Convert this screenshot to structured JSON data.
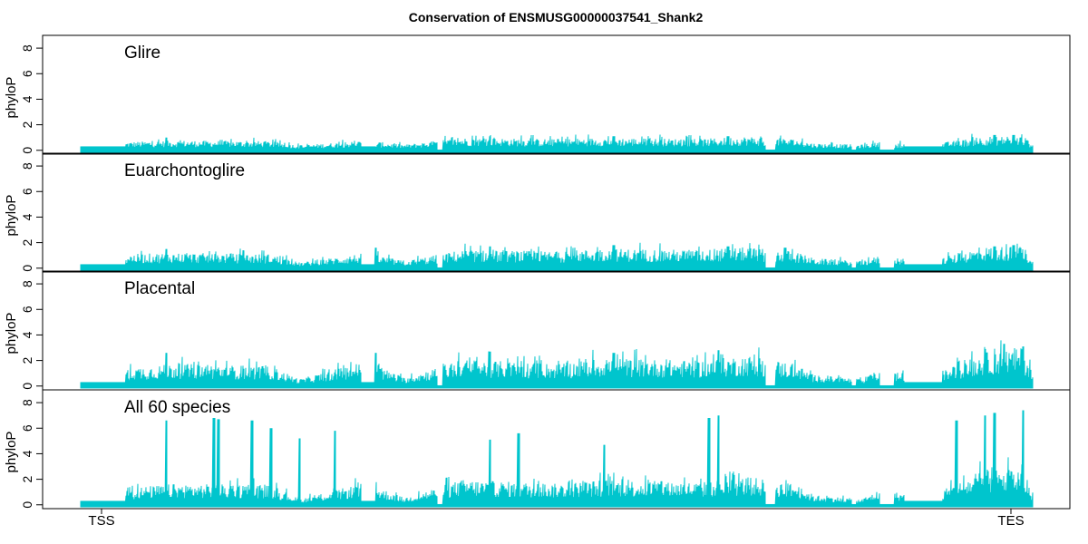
{
  "chart_data": {
    "type": "area",
    "title": "Conservation of ENSMUSG00000037541_Shank2",
    "ylabel": "phyloP",
    "ylim": [
      -0.3,
      9.0
    ],
    "yticks": [
      0,
      2,
      4,
      6,
      8
    ],
    "x_ticks": [
      "TSS",
      "TES"
    ],
    "fill_color": "#00C5CD",
    "panels": [
      {
        "name": "Glire",
        "envelope": [
          [
            0.0,
            0.4
          ],
          [
            0.04,
            0.4
          ],
          [
            0.05,
            0.6
          ],
          [
            0.1,
            0.7
          ],
          [
            0.2,
            0.65
          ],
          [
            0.23,
            0.35
          ],
          [
            0.3,
            0.7
          ],
          [
            0.34,
            0.4
          ],
          [
            0.4,
            0.9
          ],
          [
            0.5,
            0.8
          ],
          [
            0.55,
            0.9
          ],
          [
            0.65,
            0.8
          ],
          [
            0.7,
            1.0
          ],
          [
            0.75,
            0.8
          ],
          [
            0.77,
            0.5
          ],
          [
            0.82,
            0.4
          ],
          [
            0.84,
            0.6
          ],
          [
            0.89,
            0.4
          ],
          [
            0.95,
            1.0
          ],
          [
            0.99,
            1.0
          ],
          [
            1.0,
            0.5
          ]
        ],
        "peaks": [
          [
            0.09,
            1.0
          ],
          [
            0.43,
            1.1
          ],
          [
            0.56,
            1.1
          ],
          [
            0.68,
            1.1
          ],
          [
            0.96,
            1.2
          ],
          [
            0.98,
            1.2
          ]
        ]
      },
      {
        "name": "Euarchontoglire",
        "envelope": [
          [
            0.0,
            0.4
          ],
          [
            0.04,
            0.4
          ],
          [
            0.05,
            1.0
          ],
          [
            0.1,
            1.1
          ],
          [
            0.2,
            1.0
          ],
          [
            0.23,
            0.4
          ],
          [
            0.3,
            1.1
          ],
          [
            0.34,
            0.5
          ],
          [
            0.4,
            1.3
          ],
          [
            0.5,
            1.2
          ],
          [
            0.55,
            1.4
          ],
          [
            0.65,
            1.3
          ],
          [
            0.7,
            1.5
          ],
          [
            0.75,
            1.2
          ],
          [
            0.77,
            0.7
          ],
          [
            0.82,
            0.5
          ],
          [
            0.84,
            0.9
          ],
          [
            0.89,
            0.5
          ],
          [
            0.95,
            1.5
          ],
          [
            0.99,
            1.6
          ],
          [
            1.0,
            0.6
          ]
        ],
        "peaks": [
          [
            0.09,
            1.5
          ],
          [
            0.31,
            1.6
          ],
          [
            0.43,
            1.7
          ],
          [
            0.56,
            1.8
          ],
          [
            0.68,
            1.7
          ],
          [
            0.74,
            1.6
          ],
          [
            0.96,
            1.7
          ],
          [
            0.98,
            1.8
          ]
        ]
      },
      {
        "name": "Placental",
        "envelope": [
          [
            0.0,
            0.4
          ],
          [
            0.04,
            0.4
          ],
          [
            0.05,
            1.3
          ],
          [
            0.1,
            1.6
          ],
          [
            0.2,
            1.4
          ],
          [
            0.23,
            0.5
          ],
          [
            0.3,
            1.8
          ],
          [
            0.34,
            0.6
          ],
          [
            0.4,
            1.9
          ],
          [
            0.5,
            1.6
          ],
          [
            0.55,
            2.0
          ],
          [
            0.65,
            1.8
          ],
          [
            0.7,
            2.2
          ],
          [
            0.75,
            1.6
          ],
          [
            0.77,
            0.8
          ],
          [
            0.82,
            0.5
          ],
          [
            0.84,
            1.2
          ],
          [
            0.89,
            0.6
          ],
          [
            0.95,
            2.4
          ],
          [
            0.99,
            2.8
          ],
          [
            1.0,
            0.9
          ]
        ],
        "peaks": [
          [
            0.09,
            2.6
          ],
          [
            0.31,
            2.6
          ],
          [
            0.43,
            2.7
          ],
          [
            0.56,
            2.6
          ],
          [
            0.67,
            2.8
          ],
          [
            0.95,
            2.9
          ],
          [
            0.97,
            3.3
          ],
          [
            0.99,
            3.1
          ]
        ]
      },
      {
        "name": "All 60 species",
        "envelope": [
          [
            0.0,
            0.4
          ],
          [
            0.04,
            0.4
          ],
          [
            0.05,
            1.2
          ],
          [
            0.1,
            1.5
          ],
          [
            0.2,
            1.4
          ],
          [
            0.23,
            0.4
          ],
          [
            0.3,
            1.6
          ],
          [
            0.34,
            0.5
          ],
          [
            0.4,
            1.8
          ],
          [
            0.5,
            1.5
          ],
          [
            0.55,
            1.8
          ],
          [
            0.65,
            1.6
          ],
          [
            0.7,
            2.0
          ],
          [
            0.75,
            1.5
          ],
          [
            0.77,
            0.7
          ],
          [
            0.82,
            0.4
          ],
          [
            0.84,
            1.1
          ],
          [
            0.89,
            0.5
          ],
          [
            0.95,
            2.5
          ],
          [
            0.99,
            2.6
          ],
          [
            1.0,
            0.9
          ]
        ],
        "peaks": [
          [
            0.09,
            6.6
          ],
          [
            0.14,
            6.8
          ],
          [
            0.145,
            6.7
          ],
          [
            0.18,
            6.6
          ],
          [
            0.2,
            6.0
          ],
          [
            0.23,
            5.2
          ],
          [
            0.267,
            5.8
          ],
          [
            0.43,
            5.1
          ],
          [
            0.46,
            5.6
          ],
          [
            0.55,
            4.7
          ],
          [
            0.66,
            6.8
          ],
          [
            0.67,
            7.0
          ],
          [
            0.92,
            6.6
          ],
          [
            0.95,
            7.0
          ],
          [
            0.96,
            7.2
          ],
          [
            0.99,
            7.4
          ]
        ]
      }
    ]
  }
}
